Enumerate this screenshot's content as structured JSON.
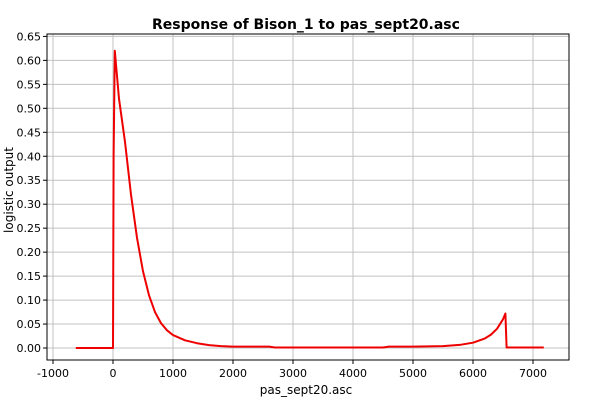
{
  "chart_data": {
    "type": "line",
    "title": "Response of Bison_1 to pas_sept20.asc",
    "xlabel": "pas_sept20.asc",
    "ylabel": "logistic output",
    "xlim": [
      -1100,
      7600
    ],
    "ylim": [
      -0.025,
      0.655
    ],
    "xticks": [
      -1000,
      0,
      1000,
      2000,
      3000,
      4000,
      5000,
      6000,
      7000
    ],
    "yticks": [
      0.0,
      0.05,
      0.1,
      0.15,
      0.2,
      0.25,
      0.3,
      0.35,
      0.4,
      0.45,
      0.5,
      0.55,
      0.6,
      0.65
    ],
    "grid": true,
    "series_color": "#ee0000",
    "series": [
      {
        "x": [
          -620,
          0,
          10,
          30,
          100,
          200,
          300,
          400,
          500,
          600,
          700,
          800,
          900,
          1000,
          1200,
          1400,
          1600,
          1800,
          2000,
          2600,
          2700,
          3000,
          4000,
          4500,
          4600,
          5000,
          5500,
          5800,
          6000,
          6200,
          6300,
          6400,
          6500,
          6540,
          6560,
          7000,
          7180
        ],
        "y": [
          0.0,
          0.0,
          0.4,
          0.62,
          0.52,
          0.43,
          0.32,
          0.23,
          0.16,
          0.11,
          0.075,
          0.052,
          0.037,
          0.027,
          0.016,
          0.01,
          0.006,
          0.004,
          0.003,
          0.003,
          0.001,
          0.001,
          0.001,
          0.001,
          0.003,
          0.003,
          0.004,
          0.007,
          0.011,
          0.02,
          0.028,
          0.04,
          0.06,
          0.072,
          0.001,
          0.001,
          0.001
        ]
      }
    ]
  }
}
